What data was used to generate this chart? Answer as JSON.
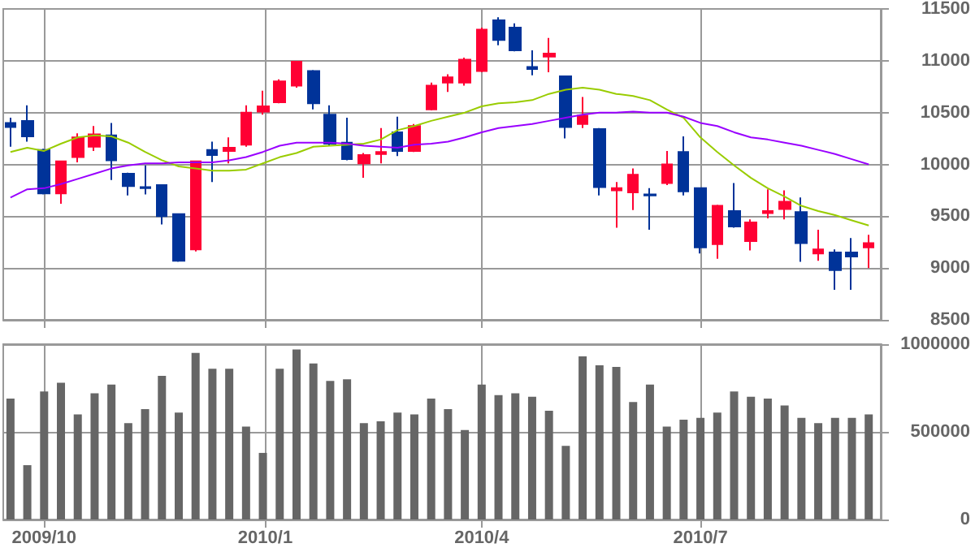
{
  "chart_data": [
    {
      "type": "candlestick",
      "tick_labels": "y",
      "grid": true,
      "x": [
        "2009-09-17",
        "2009-09-24",
        "2009-10-01",
        "2009-10-08",
        "2009-10-15",
        "2009-10-22",
        "2009-10-29",
        "2009-11-05",
        "2009-11-12",
        "2009-11-19",
        "2009-11-26",
        "2009-12-03",
        "2009-12-10",
        "2009-12-17",
        "2009-12-24",
        "2009-12-31",
        "2010-01-07",
        "2010-01-14",
        "2010-01-21",
        "2010-01-28",
        "2010-02-04",
        "2010-02-11",
        "2010-02-18",
        "2010-02-25",
        "2010-03-04",
        "2010-03-11",
        "2010-03-18",
        "2010-03-25",
        "2010-04-01",
        "2010-04-08",
        "2010-04-15",
        "2010-04-22",
        "2010-04-29",
        "2010-05-06",
        "2010-05-13",
        "2010-05-20",
        "2010-05-27",
        "2010-06-03",
        "2010-06-10",
        "2010-06-17",
        "2010-06-24",
        "2010-07-01",
        "2010-07-08",
        "2010-07-15",
        "2010-07-22",
        "2010-07-29",
        "2010-08-05",
        "2010-08-12",
        "2010-08-19",
        "2010-08-26",
        "2010-09-02",
        "2010-09-09"
      ],
      "ohlc": [
        [
          10400,
          10450,
          10170,
          10360
        ],
        [
          10420,
          10570,
          10220,
          10270
        ],
        [
          10140,
          10150,
          9710,
          9720
        ],
        [
          9720,
          10030,
          9620,
          10030
        ],
        [
          10070,
          10300,
          10020,
          10260
        ],
        [
          10170,
          10370,
          10130,
          10290
        ],
        [
          10280,
          10400,
          9850,
          10040
        ],
        [
          9910,
          9920,
          9700,
          9790
        ],
        [
          9780,
          9990,
          9710,
          9770
        ],
        [
          9800,
          9800,
          9420,
          9500
        ],
        [
          9520,
          9520,
          9060,
          9070
        ],
        [
          9180,
          10030,
          9160,
          10030
        ],
        [
          10140,
          10220,
          9830,
          10090
        ],
        [
          10130,
          10260,
          10010,
          10160
        ],
        [
          10190,
          10570,
          10170,
          10500
        ],
        [
          10510,
          10710,
          10480,
          10560
        ],
        [
          10600,
          10820,
          10590,
          10800
        ],
        [
          10760,
          10990,
          10740,
          10990
        ],
        [
          10900,
          10910,
          10530,
          10590
        ],
        [
          10480,
          10570,
          10180,
          10200
        ],
        [
          10210,
          10450,
          10040,
          10050
        ],
        [
          10010,
          10110,
          9870,
          10090
        ],
        [
          10100,
          10350,
          10010,
          10120
        ],
        [
          10310,
          10460,
          10080,
          10130
        ],
        [
          10130,
          10390,
          10120,
          10370
        ],
        [
          10530,
          10790,
          10520,
          10760
        ],
        [
          10790,
          10870,
          10700,
          10840
        ],
        [
          10790,
          11030,
          10760,
          11010
        ],
        [
          10900,
          11320,
          10890,
          11300
        ],
        [
          11390,
          11420,
          11150,
          11200
        ],
        [
          11320,
          11360,
          11090,
          11100
        ],
        [
          10940,
          11100,
          10860,
          10920
        ],
        [
          11040,
          11220,
          10890,
          11070
        ],
        [
          10850,
          10850,
          10250,
          10360
        ],
        [
          10390,
          10650,
          10350,
          10470
        ],
        [
          10340,
          10350,
          9700,
          9780
        ],
        [
          9750,
          9830,
          9390,
          9770
        ],
        [
          9730,
          9960,
          9560,
          9900
        ],
        [
          9710,
          9770,
          9370,
          9700
        ],
        [
          9820,
          10130,
          9800,
          10000
        ],
        [
          10120,
          10270,
          9700,
          9740
        ],
        [
          9770,
          9770,
          9140,
          9200
        ],
        [
          9230,
          9610,
          9090,
          9600
        ],
        [
          9550,
          9820,
          9390,
          9400
        ],
        [
          9260,
          9470,
          9170,
          9440
        ],
        [
          9530,
          9760,
          9480,
          9550
        ],
        [
          9570,
          9750,
          9470,
          9640
        ],
        [
          9540,
          9680,
          9060,
          9240
        ],
        [
          9140,
          9370,
          9070,
          9180
        ],
        [
          9150,
          9180,
          8790,
          8980
        ],
        [
          9150,
          9290,
          8790,
          9110
        ],
        [
          9200,
          9320,
          9000,
          9240
        ]
      ],
      "colors": [
        "#003399",
        "#003399",
        "#003399",
        "#ff0033",
        "#ff0033",
        "#ff0033",
        "#003399",
        "#003399",
        "#003399",
        "#003399",
        "#003399",
        "#ff0033",
        "#003399",
        "#ff0033",
        "#ff0033",
        "#ff0033",
        "#ff0033",
        "#ff0033",
        "#003399",
        "#003399",
        "#003399",
        "#ff0033",
        "#ff0033",
        "#003399",
        "#ff0033",
        "#ff0033",
        "#ff0033",
        "#ff0033",
        "#ff0033",
        "#003399",
        "#003399",
        "#003399",
        "#ff0033",
        "#003399",
        "#ff0033",
        "#003399",
        "#ff0033",
        "#ff0033",
        "#003399",
        "#ff0033",
        "#003399",
        "#003399",
        "#ff0033",
        "#003399",
        "#ff0033",
        "#ff0033",
        "#ff0033",
        "#003399",
        "#ff0033",
        "#003399",
        "#003399",
        "#ff0033"
      ],
      "series": [
        {
          "type": "line",
          "color": "#99cc00",
          "values": [
            10120,
            10160,
            10130,
            10200,
            10260,
            10280,
            10270,
            10210,
            10120,
            10040,
            9980,
            9960,
            9940,
            9940,
            9950,
            10010,
            10070,
            10110,
            10170,
            10180,
            10190,
            10200,
            10240,
            10330,
            10370,
            10420,
            10460,
            10500,
            10560,
            10590,
            10600,
            10620,
            10680,
            10720,
            10740,
            10720,
            10680,
            10660,
            10620,
            10530,
            10450,
            10260,
            10120,
            9990,
            9870,
            9770,
            9690,
            9600,
            9550,
            9510,
            9460,
            9410
          ]
        },
        {
          "type": "line",
          "color": "#9900ff",
          "values": [
            9680,
            9760,
            9770,
            9810,
            9860,
            9910,
            9960,
            9990,
            10010,
            10010,
            10020,
            10020,
            10020,
            10040,
            10070,
            10120,
            10180,
            10210,
            10210,
            10210,
            10200,
            10180,
            10170,
            10160,
            10190,
            10200,
            10220,
            10260,
            10310,
            10350,
            10370,
            10390,
            10420,
            10450,
            10480,
            10500,
            10500,
            10510,
            10500,
            10500,
            10460,
            10400,
            10370,
            10310,
            10260,
            10240,
            10210,
            10180,
            10140,
            10100,
            10050,
            10000
          ]
        }
      ],
      "xlim": [
        "2009-09-14",
        "2010-09-14"
      ],
      "xticks": [
        {
          "value": "2009-10-01",
          "label": null
        },
        {
          "value": "2010-01-01",
          "label": null
        },
        {
          "value": "2010-04-01",
          "label": null
        },
        {
          "value": "2010-07-01",
          "label": null
        }
      ],
      "ylim": [
        8500,
        11500
      ],
      "yticks": [
        8500,
        9000,
        9500,
        10000,
        10500,
        11000,
        11500
      ]
    },
    {
      "type": "bar",
      "grid": true,
      "color": "#666666",
      "x": [
        "2009-09-17",
        "2009-09-24",
        "2009-10-01",
        "2009-10-08",
        "2009-10-15",
        "2009-10-22",
        "2009-10-29",
        "2009-11-05",
        "2009-11-12",
        "2009-11-19",
        "2009-11-26",
        "2009-12-03",
        "2009-12-10",
        "2009-12-17",
        "2009-12-24",
        "2009-12-31",
        "2010-01-07",
        "2010-01-14",
        "2010-01-21",
        "2010-01-28",
        "2010-02-04",
        "2010-02-11",
        "2010-02-18",
        "2010-02-25",
        "2010-03-04",
        "2010-03-11",
        "2010-03-18",
        "2010-03-25",
        "2010-04-01",
        "2010-04-08",
        "2010-04-15",
        "2010-04-22",
        "2010-04-29",
        "2010-05-06",
        "2010-05-13",
        "2010-05-20",
        "2010-05-27",
        "2010-06-03",
        "2010-06-10",
        "2010-06-17",
        "2010-06-24",
        "2010-07-01",
        "2010-07-08",
        "2010-07-15",
        "2010-07-22",
        "2010-07-29",
        "2010-08-05",
        "2010-08-12",
        "2010-08-19",
        "2010-08-26",
        "2010-09-02",
        "2010-09-09"
      ],
      "values": [
        690000,
        310000,
        730000,
        780000,
        600000,
        720000,
        770000,
        550000,
        630000,
        820000,
        610000,
        950000,
        860000,
        860000,
        530000,
        380000,
        860000,
        970000,
        890000,
        790000,
        800000,
        550000,
        560000,
        610000,
        600000,
        690000,
        630000,
        510000,
        770000,
        710000,
        720000,
        700000,
        620000,
        420000,
        930000,
        880000,
        870000,
        670000,
        770000,
        530000,
        570000,
        580000,
        610000,
        730000,
        700000,
        690000,
        650000,
        580000,
        550000,
        580000,
        580000,
        600000
      ],
      "xlim": [
        "2009-09-14",
        "2010-09-14"
      ],
      "xticks": [
        {
          "value": "2009-10-01",
          "label": "2009/10"
        },
        {
          "value": "2010-01-01",
          "label": "2010/1"
        },
        {
          "value": "2010-04-01",
          "label": "2010/4"
        },
        {
          "value": "2010-07-01",
          "label": "2010/7"
        }
      ],
      "ylim": [
        0,
        1000000
      ],
      "yticks": [
        0,
        500000,
        1000000
      ]
    }
  ]
}
